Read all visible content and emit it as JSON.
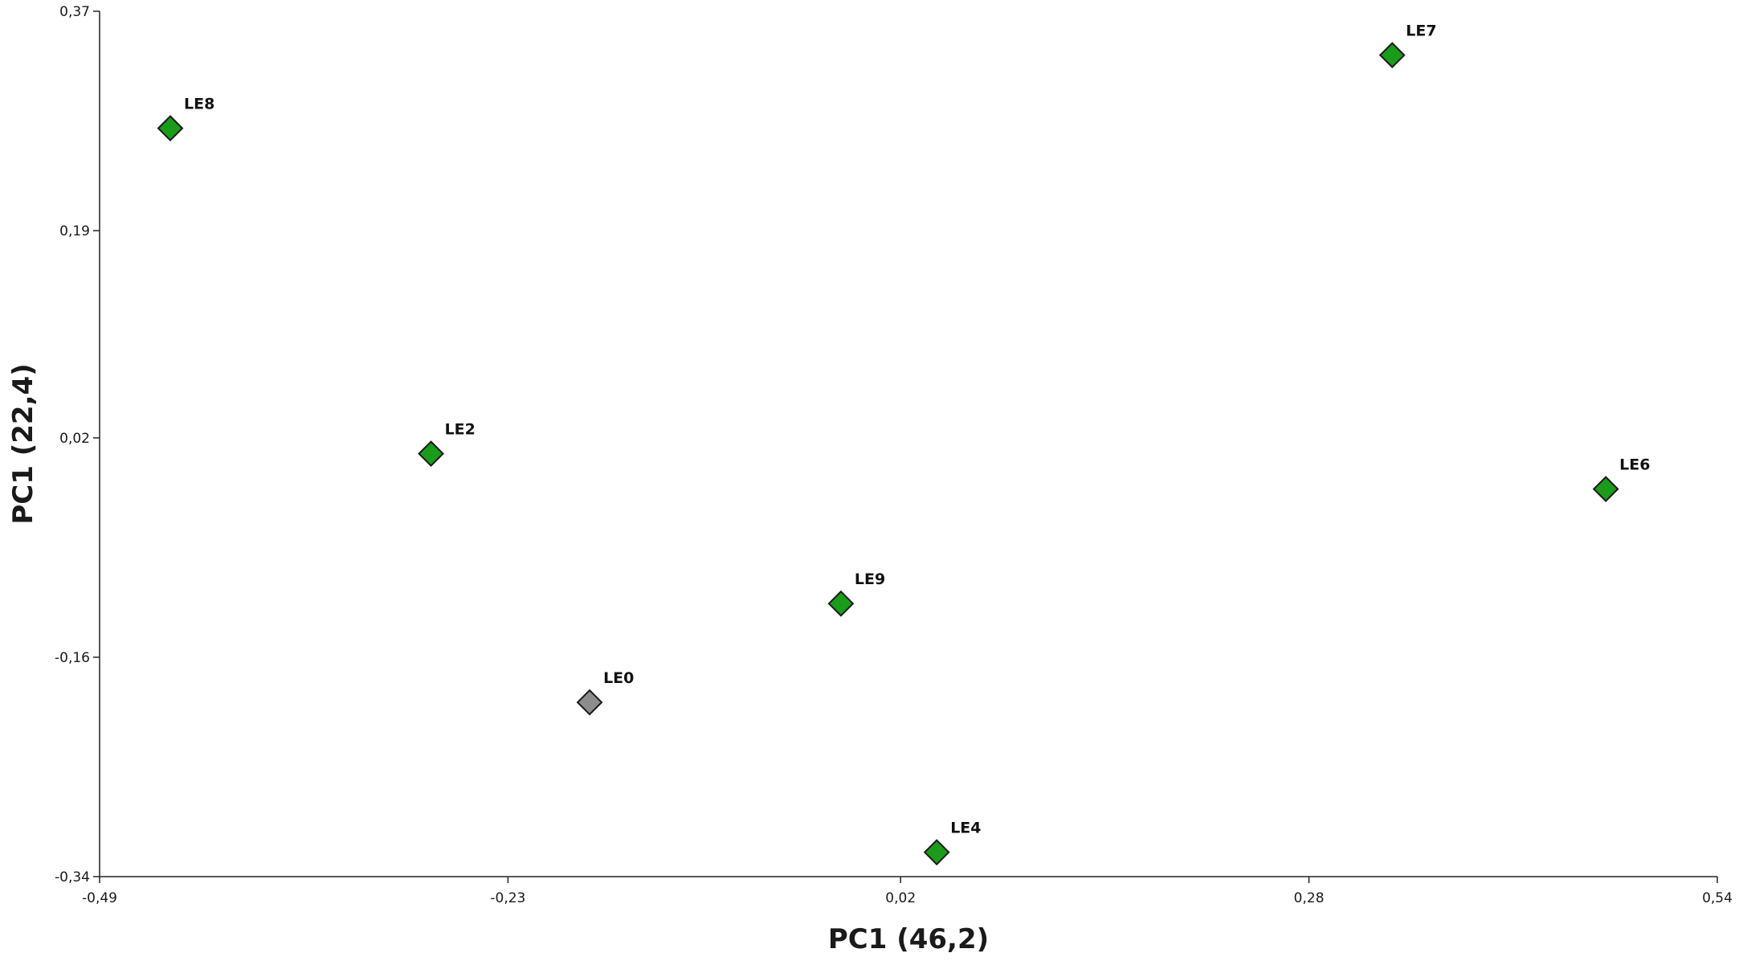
{
  "chart_data": {
    "type": "scatter",
    "title": "",
    "xlabel": "PC1 (46,2)",
    "ylabel": "PC1 (22,4)",
    "xlim": [
      -0.49,
      0.54
    ],
    "ylim": [
      -0.34,
      0.37
    ],
    "x_ticks": [
      -0.49,
      -0.23,
      0.02,
      0.28,
      0.54
    ],
    "x_tick_labels": [
      "-0,49",
      "-0,23",
      "0,02",
      "0,28",
      "0,54"
    ],
    "y_ticks": [
      -0.34,
      -0.16,
      0.02,
      0.19,
      0.37
    ],
    "y_tick_labels": [
      "-0,34",
      "-0,16",
      "0,02",
      "0,19",
      "0,37"
    ],
    "grid": false,
    "marker": "diamond",
    "points": [
      {
        "label": "LE8",
        "x": -0.445,
        "y": 0.274,
        "color": "#1a9b1a"
      },
      {
        "label": "LE7",
        "x": 0.333,
        "y": 0.334,
        "color": "#1a9b1a"
      },
      {
        "label": "LE2",
        "x": -0.279,
        "y": 0.007,
        "color": "#1a9b1a"
      },
      {
        "label": "LE6",
        "x": 0.469,
        "y": -0.022,
        "color": "#1a9b1a"
      },
      {
        "label": "LE9",
        "x": -0.018,
        "y": -0.116,
        "color": "#1a9b1a"
      },
      {
        "label": "LE0",
        "x": -0.178,
        "y": -0.197,
        "color": "#8c8c8c"
      },
      {
        "label": "LE4",
        "x": 0.043,
        "y": -0.32,
        "color": "#1a9b1a"
      }
    ]
  }
}
